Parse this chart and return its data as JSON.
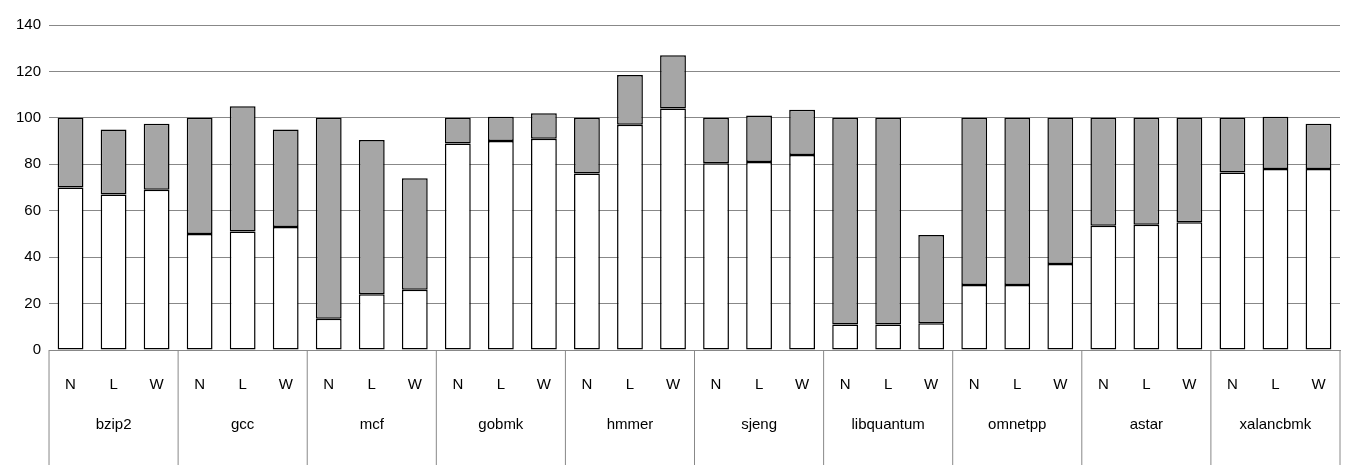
{
  "chart_data": {
    "type": "bar",
    "stacked": true,
    "categories": [
      "N",
      "L",
      "W",
      "N",
      "L",
      "W",
      "N",
      "L",
      "W",
      "N",
      "L",
      "W",
      "N",
      "L",
      "W",
      "N",
      "L",
      "W",
      "N",
      "L",
      "W",
      "N",
      "L",
      "W",
      "N",
      "L",
      "W",
      "N",
      "L",
      "W"
    ],
    "series": [
      {
        "color": "#ffffff",
        "values": [
          70,
          67,
          69,
          50,
          51,
          53,
          13.5,
          24,
          26,
          89,
          90,
          91,
          76,
          97,
          104,
          80.5,
          81,
          84,
          11,
          11,
          11.5,
          28,
          28,
          37,
          53.5,
          54,
          55,
          76.5,
          78,
          78
        ]
      },
      {
        "color": "#a6a6a6",
        "values": [
          30,
          28,
          28.5,
          50,
          54,
          42,
          86.5,
          66.5,
          48,
          11,
          10.5,
          11,
          24,
          21.5,
          23,
          19.5,
          20,
          19.5,
          89,
          89,
          38,
          72,
          72,
          63,
          46.5,
          46,
          45,
          23.5,
          22.5,
          19.5
        ]
      }
    ],
    "annotations": [
      "bzip2",
      "gcc",
      "mcf",
      "gobmk",
      "hmmer",
      "sjeng",
      "libquantum",
      "omnetpp",
      "astar",
      "xalancbmk"
    ],
    "ylim": [
      0,
      140
    ],
    "yticks": [
      0,
      20,
      40,
      60,
      80,
      100,
      120,
      140
    ],
    "grid": "y",
    "legend": false
  }
}
